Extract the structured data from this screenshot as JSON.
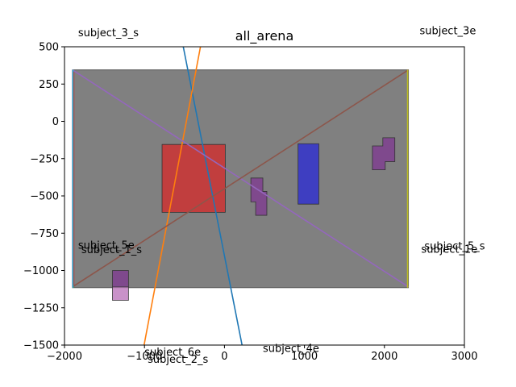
{
  "chart_data": {
    "type": "line",
    "title": "all_arena",
    "xlabel": "",
    "ylabel": "",
    "xlim": [
      -2000,
      3000
    ],
    "ylim": [
      -1500,
      500
    ],
    "xticks": [
      -2000,
      -1000,
      0,
      1000,
      2000,
      3000
    ],
    "yticks": [
      500,
      250,
      0,
      -250,
      -500,
      -750,
      -1000,
      -1250,
      -1500
    ],
    "grid": false,
    "colors": {
      "arena": "#808080",
      "obstacle_red": "#cc3333",
      "obstacle_blue": "#3333cc",
      "obstacle_purple": "#7f3f8f",
      "obstacle_pink": "#bf7fbf"
    },
    "arena": {
      "x": [
        -1900,
        2300
      ],
      "y": [
        -1115,
        345
      ]
    },
    "obstacles": [
      {
        "color": "obstacle_red",
        "points": [
          [
            -780,
            -155
          ],
          [
            10,
            -155
          ],
          [
            10,
            -610
          ],
          [
            -780,
            -610
          ]
        ]
      },
      {
        "color": "obstacle_blue",
        "points": [
          [
            920,
            -150
          ],
          [
            1180,
            -150
          ],
          [
            1180,
            -555
          ],
          [
            920,
            -555
          ]
        ]
      },
      {
        "color": "obstacle_purple",
        "points": [
          [
            330,
            -380
          ],
          [
            480,
            -380
          ],
          [
            480,
            -470
          ],
          [
            530,
            -470
          ],
          [
            530,
            -630
          ],
          [
            390,
            -630
          ],
          [
            390,
            -540
          ],
          [
            330,
            -540
          ]
        ]
      },
      {
        "color": "obstacle_purple",
        "points": [
          [
            1980,
            -110
          ],
          [
            2130,
            -110
          ],
          [
            2130,
            -270
          ],
          [
            2010,
            -270
          ],
          [
            2010,
            -325
          ],
          [
            1850,
            -325
          ],
          [
            1850,
            -165
          ],
          [
            1980,
            -165
          ]
        ]
      },
      {
        "color": "obstacle_purple",
        "points": [
          [
            -1400,
            -1000
          ],
          [
            -1200,
            -1000
          ],
          [
            -1200,
            -1110
          ],
          [
            -1400,
            -1110
          ]
        ]
      },
      {
        "color": "obstacle_pink",
        "points": [
          [
            -1400,
            -1110
          ],
          [
            -1200,
            -1110
          ],
          [
            -1200,
            -1200
          ],
          [
            -1400,
            -1200
          ]
        ]
      }
    ],
    "series": [
      {
        "color": "#1f77b4",
        "x": [
          -515,
          220
        ],
        "y": [
          500,
          -1500
        ]
      },
      {
        "color": "#ff7f0e",
        "x": [
          -300,
          -1005
        ],
        "y": [
          500,
          -1500
        ]
      },
      {
        "color": "#2ca02c",
        "x": [
          -1890,
          -1890
        ],
        "y": [
          345,
          -1115
        ]
      },
      {
        "color": "#d62728",
        "x": [
          -1885,
          -1885
        ],
        "y": [
          340,
          -1110
        ]
      },
      {
        "color": "#9467bd",
        "x": [
          -1900,
          2300
        ],
        "y": [
          345,
          -1110
        ]
      },
      {
        "color": "#8c564b",
        "x": [
          -1900,
          2300
        ],
        "y": [
          -1110,
          345
        ]
      },
      {
        "color": "#e377c2",
        "x": [
          -1900,
          -1900
        ],
        "y": [
          345,
          -1115
        ]
      },
      {
        "color": "#bcbd22",
        "x": [
          2290,
          2290
        ],
        "y": [
          345,
          -1115
        ]
      },
      {
        "color": "#17becf",
        "x": [
          -1895,
          -1895
        ],
        "y": [
          345,
          -1115
        ]
      }
    ],
    "annotations": [
      {
        "text": "subject_3_s",
        "x": -1830,
        "y": 570
      },
      {
        "text": "subject_3e",
        "x": 2440,
        "y": 585
      },
      {
        "text": "subject_5e",
        "x": -1830,
        "y": -855
      },
      {
        "text": "subject_1_s",
        "x": -1790,
        "y": -885
      },
      {
        "text": "subject_5_s",
        "x": 2500,
        "y": -860
      },
      {
        "text": "subject_1e",
        "x": 2460,
        "y": -880
      },
      {
        "text": "subject_6e",
        "x": -1000,
        "y": -1570
      },
      {
        "text": "subject_2_s",
        "x": -960,
        "y": -1620
      },
      {
        "text": "subject_4e",
        "x": 480,
        "y": -1545
      }
    ]
  }
}
